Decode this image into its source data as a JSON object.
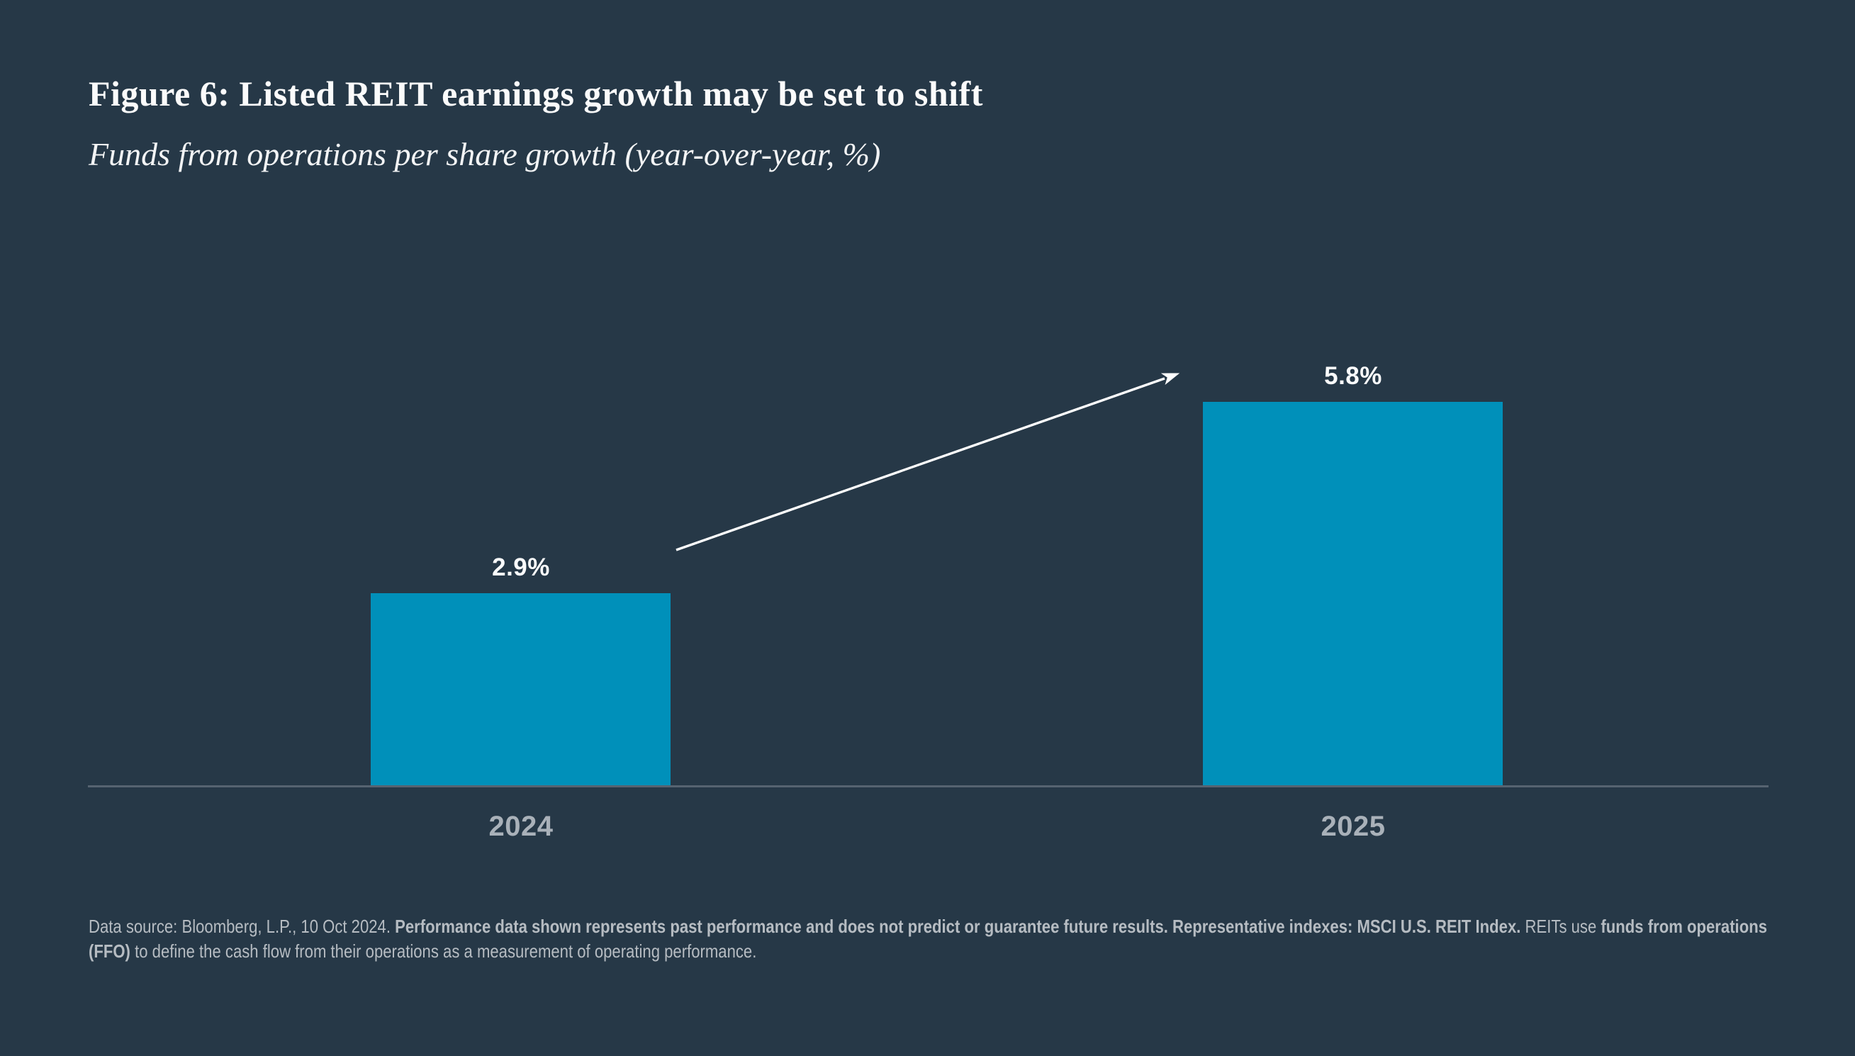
{
  "chart_data": {
    "type": "bar",
    "title": "Figure 6: Listed REIT earnings growth may be set to shift",
    "subtitle": "Funds from operations per share growth (year-over-year, %)",
    "categories": [
      "2024",
      "2025"
    ],
    "values": [
      2.9,
      5.8
    ],
    "value_labels": [
      "2.9%",
      "5.8%"
    ],
    "unit": "%",
    "ylim": [
      0,
      6.2
    ],
    "y_axis_visible": false,
    "gridlines": false,
    "legend": false,
    "bar_color": "#0090BA",
    "background_color": "#263847",
    "axis_line_color": "#566371",
    "annotations": [
      {
        "type": "arrow",
        "color": "#ffffff",
        "description": "upward arrow pointing from above the 2024 bar toward the 5.8% label of the 2025 bar"
      }
    ]
  },
  "footnote": {
    "lines": [
      {
        "segments": [
          {
            "text": "Data source: Bloomberg, L.P., 10 Oct 2024. ",
            "bold": false
          },
          {
            "text": "Performance data shown represents past performance and does not predict or guarantee future results. Representative indexes: MSCI U.S. REIT Index.",
            "bold": true
          },
          {
            "text": " REITs use ",
            "bold": false
          },
          {
            "text": "funds from operations",
            "bold": true
          }
        ]
      },
      {
        "segments": [
          {
            "text": "(FFO)",
            "bold": true
          },
          {
            "text": " to define the cash flow from their operations as a measurement of operating performance.",
            "bold": false
          }
        ]
      }
    ]
  }
}
